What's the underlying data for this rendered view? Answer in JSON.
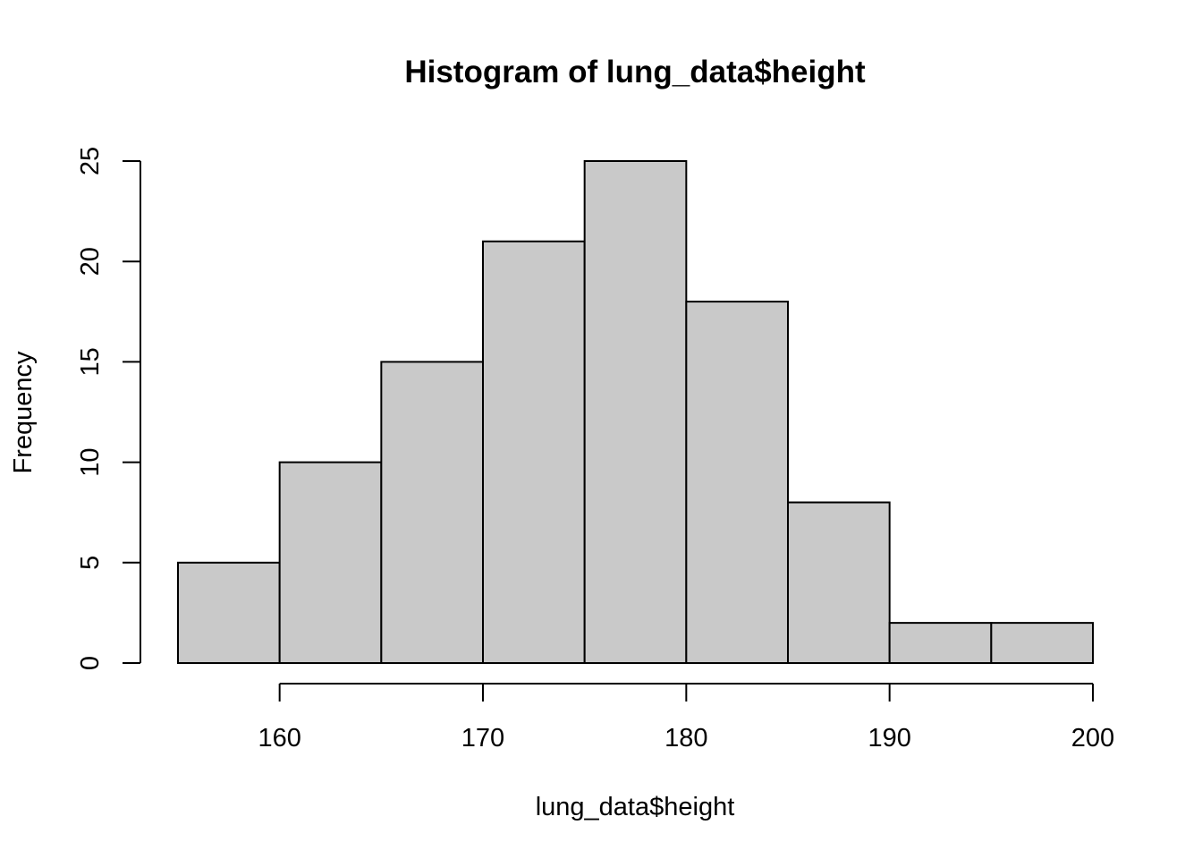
{
  "chart_data": {
    "type": "bar",
    "title": "Histogram of lung_data$height",
    "xlabel": "lung_data$height",
    "ylabel": "Frequency",
    "bins": [
      {
        "start": 155,
        "end": 160,
        "count": 5
      },
      {
        "start": 160,
        "end": 165,
        "count": 10
      },
      {
        "start": 165,
        "end": 170,
        "count": 15
      },
      {
        "start": 170,
        "end": 175,
        "count": 21
      },
      {
        "start": 175,
        "end": 180,
        "count": 25
      },
      {
        "start": 180,
        "end": 185,
        "count": 18
      },
      {
        "start": 185,
        "end": 190,
        "count": 8
      },
      {
        "start": 190,
        "end": 195,
        "count": 2
      },
      {
        "start": 195,
        "end": 200,
        "count": 2
      }
    ],
    "xlim": [
      155,
      200
    ],
    "ylim": [
      0,
      25
    ],
    "x_ticks": [
      "160",
      "170",
      "180",
      "190",
      "200"
    ],
    "y_ticks": [
      "0",
      "5",
      "10",
      "15",
      "20",
      "25"
    ],
    "bar_color": "#c9c9c9",
    "grid": false
  }
}
